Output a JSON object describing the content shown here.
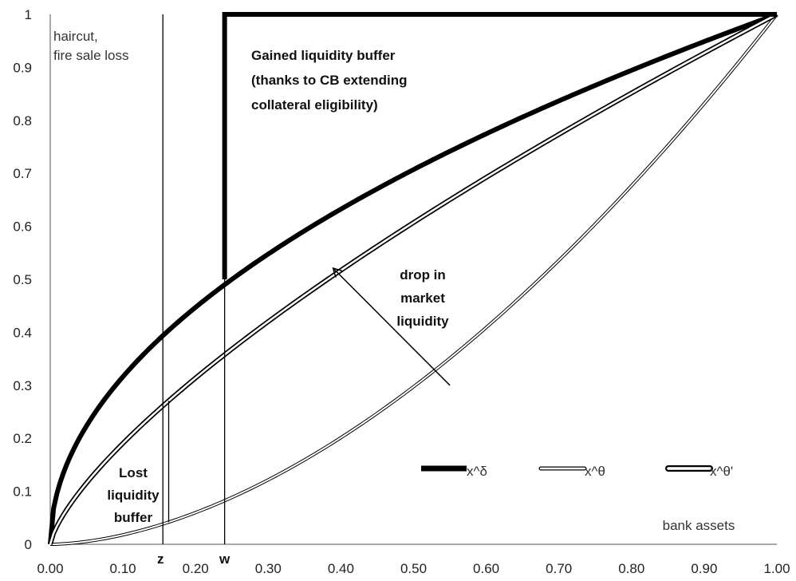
{
  "chart_data": {
    "type": "line",
    "title": "",
    "xlabel": "bank assets",
    "ylabel": "haircut, fire sale loss",
    "xlim": [
      0,
      1
    ],
    "ylim": [
      0,
      1
    ],
    "x_ticks": [
      "0.00",
      "0.10",
      "0.20",
      "0.30",
      "0.40",
      "0.50",
      "0.60",
      "0.70",
      "0.80",
      "0.90",
      "1.00"
    ],
    "y_ticks": [
      "0",
      "0.1",
      "0.2",
      "0.3",
      "0.4",
      "0.5",
      "0.6",
      "0.7",
      "0.8",
      "0.9",
      "1"
    ],
    "series": [
      {
        "name": "x^δ",
        "style": "thick-black",
        "exponent": 0.5
      },
      {
        "name": "x^θ",
        "style": "thin-double",
        "exponent": 1.75
      },
      {
        "name": "x^θ'",
        "style": "medium-double",
        "exponent": 0.72
      }
    ],
    "markers": [
      {
        "label": "z",
        "x": 0.155
      },
      {
        "label": "w",
        "x": 0.24
      }
    ],
    "cb_boundary": {
      "x": 0.24,
      "y_from": 0.5,
      "y_to": 1.0
    },
    "annotations": {
      "y_axis_note": [
        "haircut,",
        "fire sale loss"
      ],
      "gained": [
        "Gained liquidity buffer",
        "(thanks to CB extending",
        "collateral eligibility)"
      ],
      "lost": [
        "Lost",
        "liquidity",
        "buffer"
      ],
      "drop": [
        "drop in",
        "market",
        "liquidity"
      ],
      "arrow": {
        "from": [
          0.55,
          0.3
        ],
        "to": [
          0.39,
          0.52
        ]
      }
    },
    "legend_position": "bottom-right",
    "colors": {
      "line": "#000000",
      "background": "#ffffff"
    }
  }
}
